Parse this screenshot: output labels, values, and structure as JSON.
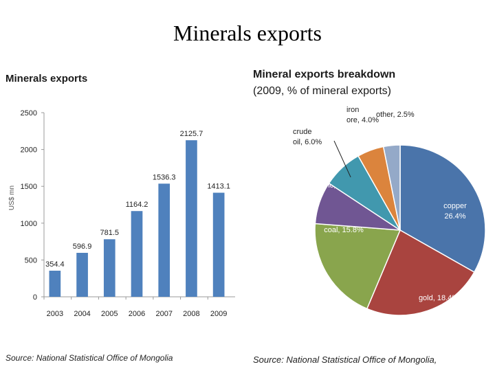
{
  "slide_title": "Minerals exports",
  "colors": {
    "bar": "#4f81bd",
    "pie": [
      "#4a74aa",
      "#a9443f",
      "#89a54d",
      "#705693",
      "#4198ae",
      "#db843d",
      "#94a9c8"
    ]
  },
  "chart_data": [
    {
      "type": "bar",
      "title": "Minerals exports",
      "ylabel": "US$ mn",
      "xlabel": "",
      "categories": [
        "2003",
        "2004",
        "2005",
        "2006",
        "2007",
        "2008",
        "2009"
      ],
      "values": [
        354.4,
        596.9,
        781.5,
        1164.2,
        1536.3,
        2125.7,
        1413.1
      ],
      "value_labels": [
        "354.4",
        "596.9",
        "781.5",
        "1164.2",
        "1536.3",
        "2125.7",
        "1413.1"
      ],
      "ylim": [
        0,
        2500
      ],
      "yticks": [
        0,
        500,
        1000,
        1500,
        2000,
        2500
      ],
      "source": "Source: National Statistical Office of Mongolia"
    },
    {
      "type": "pie",
      "title": "Mineral exports breakdown",
      "subtitle": "(2009, % of mineral exports)",
      "slices": [
        {
          "label": "copper",
          "value": 26.4,
          "text_lines": [
            "copper",
            "26.4%"
          ]
        },
        {
          "label": "gold",
          "value": 18.4,
          "text_lines": [
            "gold, 18.4%"
          ]
        },
        {
          "label": "coal",
          "value": 15.8,
          "text_lines": [
            "coal, 15.8%"
          ]
        },
        {
          "label": "zinc",
          "value": 6.4,
          "text_lines": [
            "zinc, 6.4%"
          ]
        },
        {
          "label": "crude oil",
          "value": 6.0,
          "text_lines": [
            "crude",
            "oil, 6.0%"
          ]
        },
        {
          "label": "iron ore",
          "value": 4.0,
          "text_lines": [
            "iron",
            "ore, 4.0%"
          ]
        },
        {
          "label": "other",
          "value": 2.5,
          "text_lines": [
            "other, 2.5%"
          ]
        }
      ],
      "source": "Source: National Statistical Office of Mongolia,"
    }
  ]
}
